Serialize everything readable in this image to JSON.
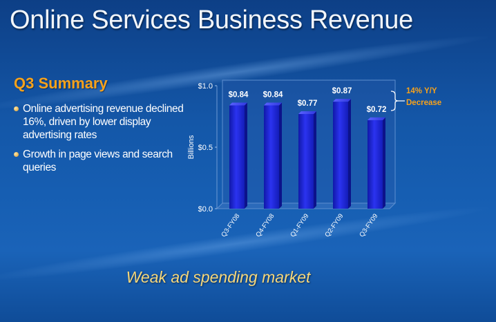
{
  "slide": {
    "title": "Online Services Business Revenue",
    "summary_heading": "Q3 Summary",
    "bullets": [
      "Online advertising revenue declined 16%, driven by lower display advertising rates",
      "Growth in page views and search queries"
    ],
    "footer": "Weak ad spending market"
  },
  "colors": {
    "background": "#1457a8",
    "accent_orange": "#f7a21b",
    "footer_gold": "#f6d77b",
    "bar": "#1f27d6"
  },
  "chart_data": {
    "type": "bar",
    "categories": [
      "Q3-FY08",
      "Q4-FY08",
      "Q1-FY09",
      "Q2-FY09",
      "Q3-FY09"
    ],
    "values": [
      0.84,
      0.84,
      0.77,
      0.87,
      0.72
    ],
    "data_labels": [
      "$0.84",
      "$0.84",
      "$0.77",
      "$0.87",
      "$0.72"
    ],
    "ylabel": "Billions",
    "ylim": [
      0,
      1.0
    ],
    "yticks": [
      0,
      0.5,
      1.0
    ],
    "ytick_labels": [
      "$0.0",
      "$0.5",
      "$1.0"
    ],
    "annotation": "14% Y/Y Decrease",
    "grid": false,
    "legend": "none"
  }
}
